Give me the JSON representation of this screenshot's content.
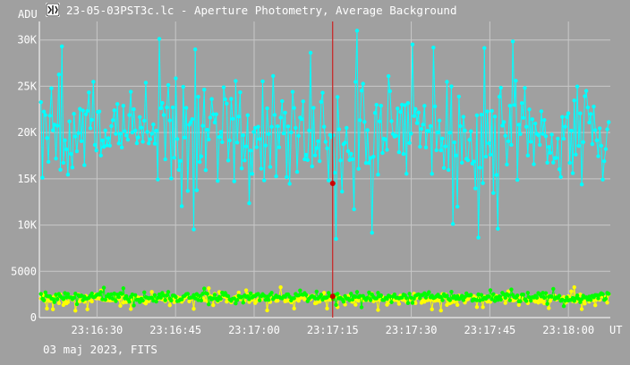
{
  "header": {
    "title": "23-05-03PST3c.lc - Aperture Photometry, Average Background"
  },
  "footer": {
    "date_text": "03 maj 2023, FITS"
  },
  "chart_data": {
    "type": "scatter",
    "title": "23-05-03PST3c.lc - Aperture Photometry, Average Background",
    "ylabel": "ADU",
    "xlabel": "UT",
    "ylim": [
      0,
      32000
    ],
    "xlim": [
      "23:16:19",
      "23:18:08"
    ],
    "y_ticks": [
      {
        "value": 0,
        "label": "0"
      },
      {
        "value": 5000,
        "label": "5000"
      },
      {
        "value": 10000,
        "label": "10K"
      },
      {
        "value": 15000,
        "label": "15K"
      },
      {
        "value": 20000,
        "label": "20K"
      },
      {
        "value": 25000,
        "label": "25K"
      },
      {
        "value": 30000,
        "label": "30K"
      }
    ],
    "x_ticks": [
      {
        "time": "23:16:30",
        "label": "23:16:30"
      },
      {
        "time": "23:16:45",
        "label": "23:16:45"
      },
      {
        "time": "23:17:00",
        "label": "23:17:00"
      },
      {
        "time": "23:17:15",
        "label": "23:17:15"
      },
      {
        "time": "23:17:30",
        "label": "23:17:30"
      },
      {
        "time": "23:17:45",
        "label": "23:17:45"
      },
      {
        "time": "23:18:00",
        "label": "23:18:00"
      }
    ],
    "grid": true,
    "cursor": {
      "time": "23:17:15",
      "color": "#cc0000",
      "values": [
        14500,
        2300
      ]
    },
    "series": [
      {
        "color": "#00ffff",
        "mean": 20000,
        "spread": 5000,
        "min": 8500,
        "max": 31000,
        "count": 380
      },
      {
        "color": "#ffff00",
        "mean": 2000,
        "spread": 500,
        "min": 700,
        "max": 4600,
        "count": 380
      },
      {
        "color": "#00ff00",
        "mean": 2200,
        "spread": 450,
        "min": 900,
        "max": 4400,
        "count": 380
      }
    ]
  }
}
